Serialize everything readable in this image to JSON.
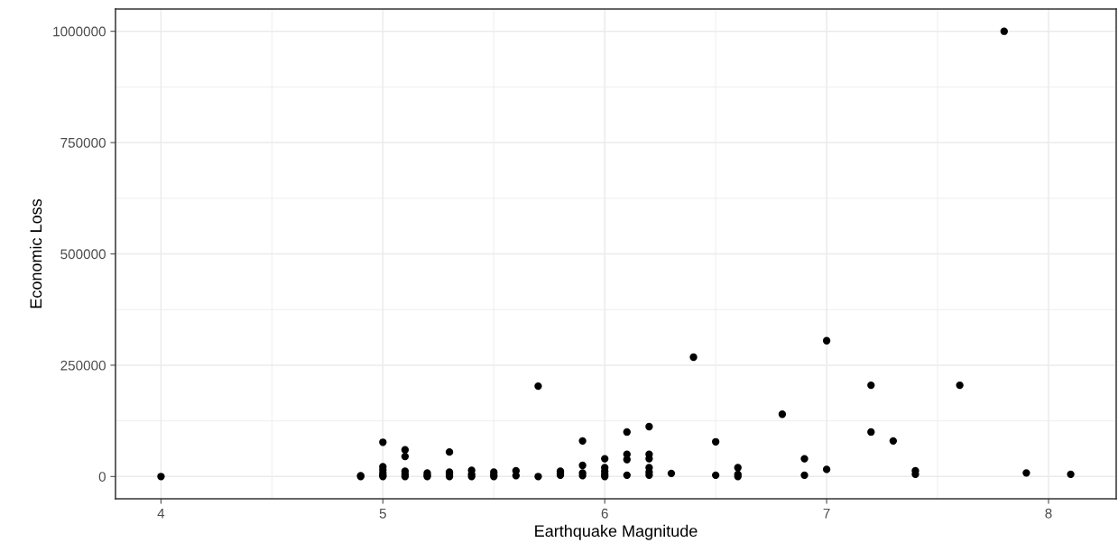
{
  "chart_data": {
    "type": "scatter",
    "xlabel": "Earthquake Magnitude",
    "ylabel": "Economic Loss",
    "color": "#000000",
    "marker": "circle",
    "grid": true,
    "x": [
      4.0,
      4.9,
      4.9,
      5.0,
      5.0,
      5.0,
      5.0,
      5.0,
      5.0,
      5.1,
      5.1,
      5.1,
      5.1,
      5.1,
      5.2,
      5.2,
      5.2,
      5.3,
      5.3,
      5.3,
      5.3,
      5.4,
      5.4,
      5.4,
      5.5,
      5.5,
      5.5,
      5.6,
      5.6,
      5.7,
      5.7,
      5.8,
      5.8,
      5.8,
      5.9,
      5.9,
      5.9,
      5.9,
      6.0,
      6.0,
      6.0,
      6.0,
      6.0,
      6.1,
      6.1,
      6.1,
      6.1,
      6.2,
      6.2,
      6.2,
      6.2,
      6.2,
      6.2,
      6.3,
      6.4,
      6.5,
      6.5,
      6.6,
      6.6,
      6.6,
      6.8,
      6.9,
      6.9,
      7.0,
      7.0,
      7.2,
      7.2,
      7.3,
      7.4,
      7.4,
      7.6,
      7.8,
      7.9,
      8.1
    ],
    "values": [
      0,
      0,
      2000,
      0,
      3000,
      8000,
      15000,
      22000,
      77000,
      0,
      5000,
      12000,
      45000,
      60000,
      0,
      3000,
      8000,
      0,
      5000,
      10000,
      55000,
      0,
      5000,
      14000,
      0,
      4000,
      10000,
      2000,
      13000,
      0,
      203000,
      3000,
      8000,
      12000,
      2000,
      8000,
      25000,
      80000,
      0,
      5000,
      12000,
      20000,
      40000,
      3000,
      38000,
      50000,
      100000,
      3000,
      10000,
      20000,
      40000,
      50000,
      112000,
      7000,
      268000,
      3000,
      78000,
      0,
      5000,
      20000,
      140000,
      3000,
      40000,
      16000,
      305000,
      100000,
      205000,
      80000,
      5000,
      13000,
      205000,
      1000000,
      8000,
      5000
    ],
    "xlim": [
      3.795,
      8.305
    ],
    "xticks": [
      4,
      5,
      6,
      7,
      8
    ],
    "ylim": [
      -50000,
      1050000
    ],
    "yticks": [
      0,
      250000,
      500000,
      750000,
      1000000
    ]
  }
}
